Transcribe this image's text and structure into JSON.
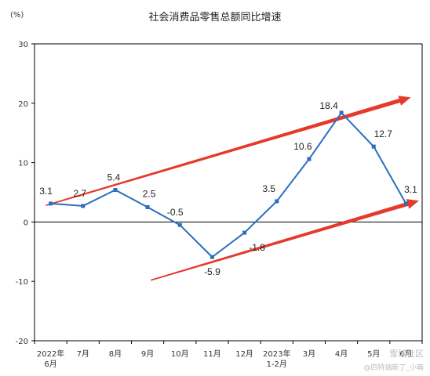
{
  "chart_data": {
    "type": "line",
    "title": "社会消费品零售总额同比增速",
    "unit_label": "(%)",
    "ylim": [
      -20,
      30
    ],
    "yticks": [
      -20,
      -10,
      0,
      10,
      20,
      30
    ],
    "categories": [
      [
        "2022年",
        "6月"
      ],
      [
        "7月"
      ],
      [
        "8月"
      ],
      [
        "9月"
      ],
      [
        "10月"
      ],
      [
        "11月"
      ],
      [
        "12月"
      ],
      [
        "2023年",
        "1-2月"
      ],
      [
        "3月"
      ],
      [
        "4月"
      ],
      [
        "5月"
      ],
      [
        "6月"
      ]
    ],
    "series": [
      {
        "values": [
          3.1,
          2.7,
          5.4,
          2.5,
          -0.5,
          -5.9,
          -1.8,
          3.5,
          10.6,
          18.4,
          12.7,
          3.1
        ]
      }
    ],
    "data_labels": [
      "3.1",
      "2.7",
      "5.4",
      "2.5",
      "-0.5",
      "-5.9",
      "-1.8",
      "3.5",
      "10.6",
      "18.4",
      "12.7",
      "3.1"
    ],
    "grid": false,
    "legend": "none",
    "annotations": [
      {
        "type": "arrow",
        "from": [
          -0.15,
          2.8
        ],
        "to": [
          11.15,
          21.0
        ]
      },
      {
        "type": "arrow",
        "from": [
          3.1,
          -9.8
        ],
        "to": [
          11.4,
          3.6
        ]
      }
    ],
    "colors": {
      "line": "#2a6ebd",
      "arrow": "#e53a2b",
      "axis": "#000000"
    }
  },
  "watermark": "雪球社区",
  "watermark_sub": "@四特瑞斯丁_小萌"
}
